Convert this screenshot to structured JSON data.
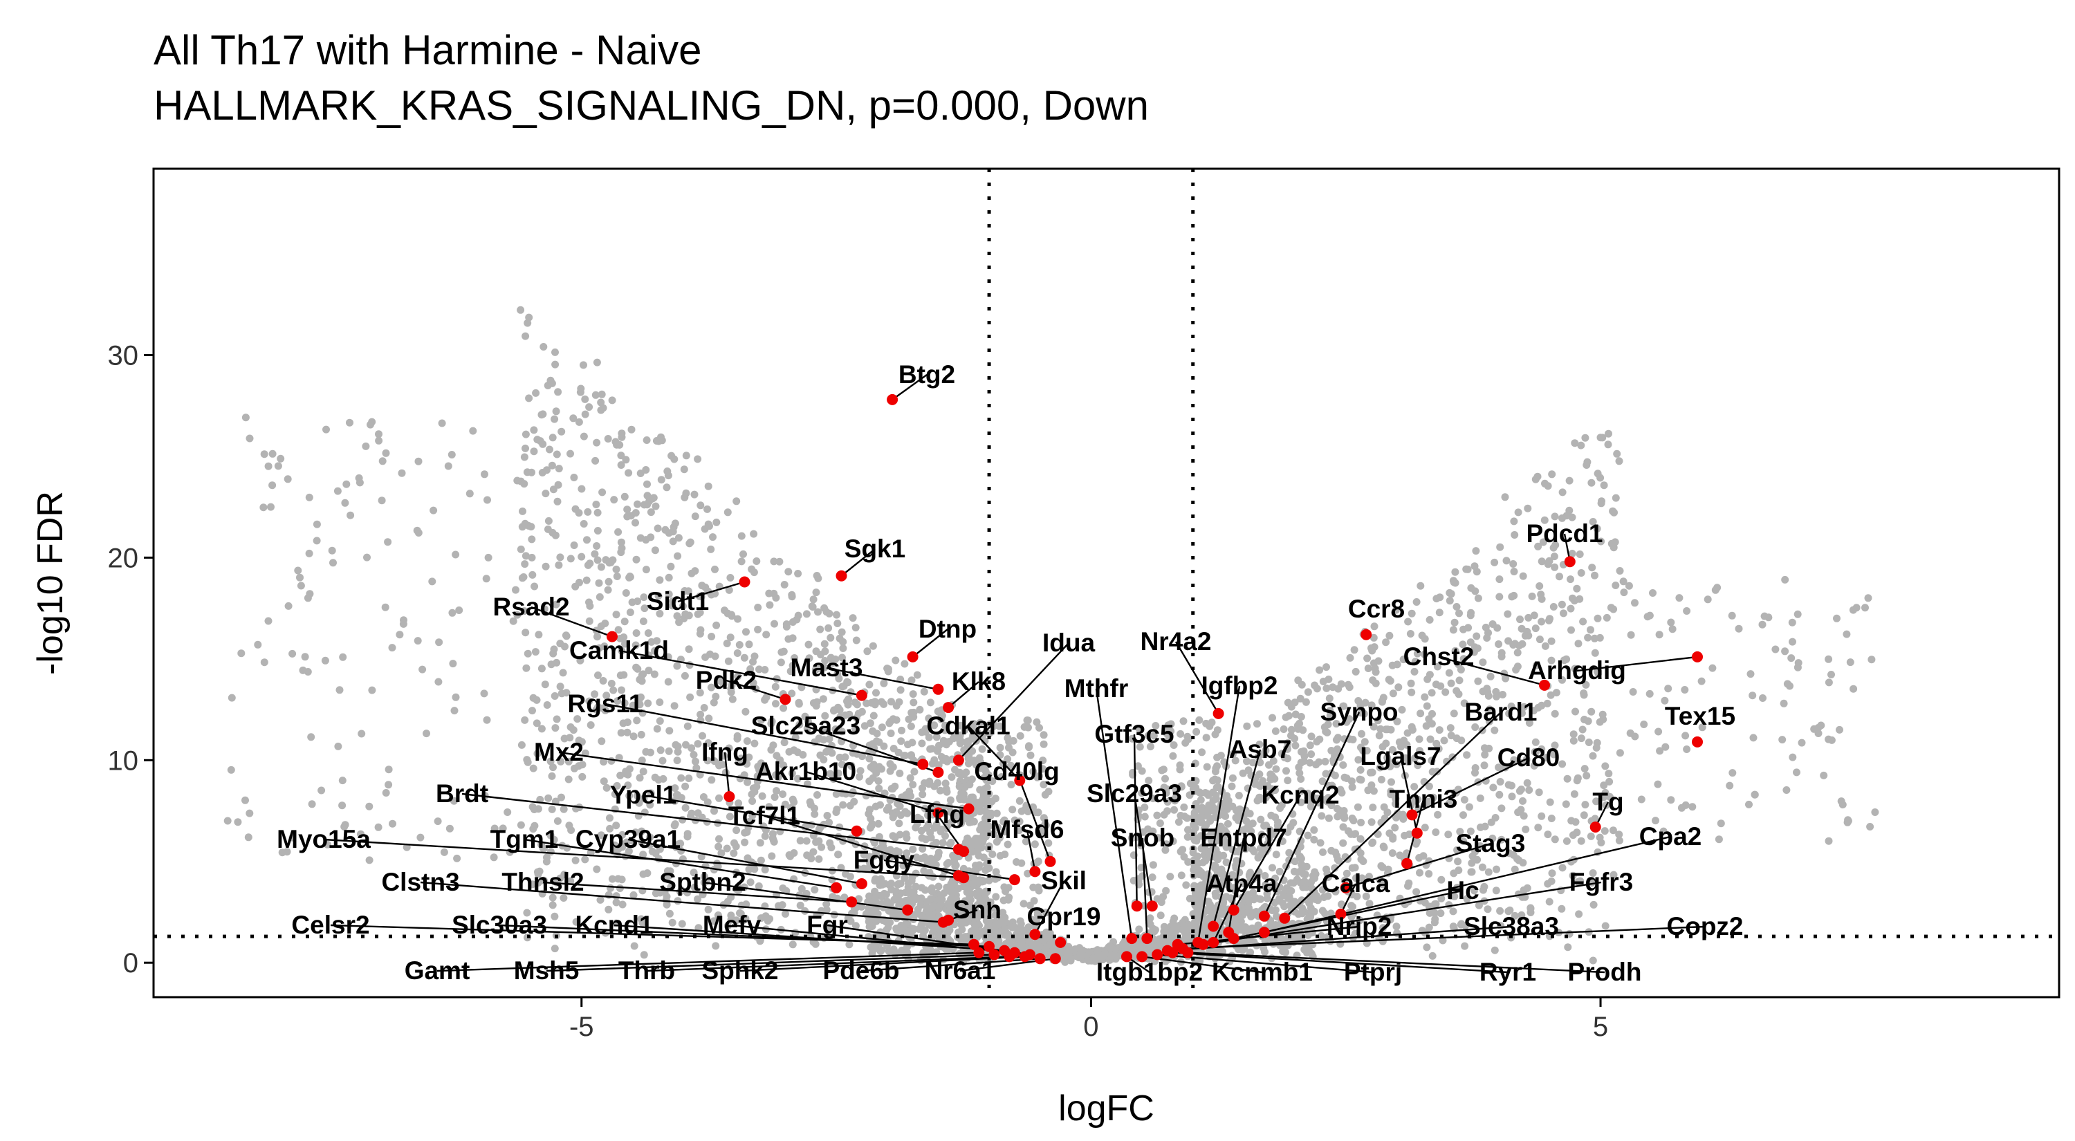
{
  "title": "All Th17 with Harmine - Naive",
  "subtitle": "HALLMARK_KRAS_SIGNALING_DN, p=0.000, Down",
  "chart_data": {
    "type": "scatter",
    "title": "All Th17 with Harmine - Naive",
    "subtitle": "HALLMARK_KRAS_SIGNALING_DN, p=0.000, Down",
    "xlabel": "logFC",
    "ylabel": "-log10 FDR",
    "xlim": [
      -9.2,
      9.5
    ],
    "ylim": [
      -1.7,
      39.2
    ],
    "xticks": [
      -5,
      0,
      5
    ],
    "yticks": [
      0,
      10,
      20,
      30
    ],
    "thresholds": {
      "x": [
        -1,
        1
      ],
      "y": 1.3
    },
    "grid": false,
    "colors": {
      "background_points": "#b3b3b3",
      "highlight_points": "#ee0000",
      "threshold_lines": "#000000"
    },
    "highlighted": [
      {
        "gene": "Btg2",
        "x": -1.95,
        "y": 27.8
      },
      {
        "gene": "Sgk1",
        "x": -2.45,
        "y": 19.1
      },
      {
        "gene": "Sidt1",
        "x": -3.4,
        "y": 18.8
      },
      {
        "gene": "Rsad2",
        "x": -4.7,
        "y": 16.1
      },
      {
        "gene": "Dtnp",
        "x": -1.75,
        "y": 15.1
      },
      {
        "gene": "Camk1d",
        "x": -2.25,
        "y": 13.2
      },
      {
        "gene": "Mast3",
        "x": -1.5,
        "y": 13.5
      },
      {
        "gene": "Pdk2",
        "x": -3.0,
        "y": 13.0
      },
      {
        "gene": "Klk8",
        "x": -1.4,
        "y": 12.6
      },
      {
        "gene": "Idua",
        "x": -1.3,
        "y": 10.0
      },
      {
        "gene": "Rgs11",
        "x": -1.65,
        "y": 9.8
      },
      {
        "gene": "Slc25a23",
        "x": -1.5,
        "y": 9.4
      },
      {
        "gene": "Cdkal1",
        "x": -0.7,
        "y": 9.0
      },
      {
        "gene": "Mx2",
        "x": -1.2,
        "y": 7.6
      },
      {
        "gene": "Ifng",
        "x": -3.55,
        "y": 8.2
      },
      {
        "gene": "Akr1b10",
        "x": -1.5,
        "y": 7.4
      },
      {
        "gene": "Cd40lg",
        "x": -0.4,
        "y": 5.0
      },
      {
        "gene": "Brdt",
        "x": -1.3,
        "y": 5.6
      },
      {
        "gene": "Ypel1",
        "x": -2.3,
        "y": 6.5
      },
      {
        "gene": "Lfng",
        "x": -1.25,
        "y": 5.5
      },
      {
        "gene": "Tcf7l1",
        "x": -1.3,
        "y": 4.3
      },
      {
        "gene": "Mfsd6",
        "x": -0.55,
        "y": 4.5
      },
      {
        "gene": "Myo15a",
        "x": -1.25,
        "y": 4.2
      },
      {
        "gene": "Tgm1",
        "x": -2.5,
        "y": 3.7
      },
      {
        "gene": "Cyp39a1",
        "x": -2.25,
        "y": 3.9
      },
      {
        "gene": "Fggy",
        "x": -0.75,
        "y": 4.1
      },
      {
        "gene": "Skil",
        "x": -0.55,
        "y": 1.4
      },
      {
        "gene": "Clstn3",
        "x": -1.45,
        "y": 2.0
      },
      {
        "gene": "Thnsl2",
        "x": -2.35,
        "y": 3.0
      },
      {
        "gene": "Sptbn2",
        "x": -1.8,
        "y": 2.6
      },
      {
        "gene": "Snn",
        "x": -1.4,
        "y": 2.1
      },
      {
        "gene": "Gpr19",
        "x": -0.3,
        "y": 1.0
      },
      {
        "gene": "Celsr2",
        "x": -1.15,
        "y": 0.9
      },
      {
        "gene": "Slc30a3",
        "x": -1.0,
        "y": 0.8
      },
      {
        "gene": "Kcnd1",
        "x": -0.85,
        "y": 0.6
      },
      {
        "gene": "Mefv",
        "x": -0.75,
        "y": 0.5
      },
      {
        "gene": "Fgr",
        "x": -0.6,
        "y": 0.4
      },
      {
        "gene": "Gamt",
        "x": -1.1,
        "y": 0.5
      },
      {
        "gene": "Msh5",
        "x": -0.95,
        "y": 0.4
      },
      {
        "gene": "Thrb",
        "x": -0.8,
        "y": 0.3
      },
      {
        "gene": "Sphk2",
        "x": -0.65,
        "y": 0.3
      },
      {
        "gene": "Pde6b",
        "x": -0.5,
        "y": 0.2
      },
      {
        "gene": "Nr6a1",
        "x": -0.35,
        "y": 0.2
      },
      {
        "gene": "Pdcd1",
        "x": 4.7,
        "y": 19.8
      },
      {
        "gene": "Ccr8",
        "x": 2.7,
        "y": 16.2
      },
      {
        "gene": "Arhgdig",
        "x": 5.95,
        "y": 15.1
      },
      {
        "gene": "Chst2",
        "x": 4.45,
        "y": 13.7
      },
      {
        "gene": "Nr4a2",
        "x": 1.25,
        "y": 12.3
      },
      {
        "gene": "Tex15",
        "x": 5.95,
        "y": 10.9
      },
      {
        "gene": "Igfbp2",
        "x": 1.05,
        "y": 1.0
      },
      {
        "gene": "Mthfr",
        "x": 0.4,
        "y": 1.2
      },
      {
        "gene": "Gtf3c5",
        "x": 0.45,
        "y": 2.8
      },
      {
        "gene": "Synpo",
        "x": 1.7,
        "y": 2.3
      },
      {
        "gene": "Bard1",
        "x": 1.9,
        "y": 2.2
      },
      {
        "gene": "Cd80",
        "x": 3.15,
        "y": 7.3
      },
      {
        "gene": "Lgals7",
        "x": 3.2,
        "y": 6.4
      },
      {
        "gene": "Asb7",
        "x": 1.2,
        "y": 1.8
      },
      {
        "gene": "Slc29a3",
        "x": 0.6,
        "y": 2.8
      },
      {
        "gene": "Tnni3",
        "x": 3.1,
        "y": 4.9
      },
      {
        "gene": "Kcnq2",
        "x": 1.4,
        "y": 2.6
      },
      {
        "gene": "Tg",
        "x": 4.95,
        "y": 6.7
      },
      {
        "gene": "Snob",
        "x": 0.55,
        "y": 1.2
      },
      {
        "gene": "Entpd7",
        "x": 1.35,
        "y": 1.5
      },
      {
        "gene": "Stag3",
        "x": 2.5,
        "y": 3.7
      },
      {
        "gene": "Cpa2",
        "x": 1.7,
        "y": 1.5
      },
      {
        "gene": "Atp4a",
        "x": 1.2,
        "y": 1.0
      },
      {
        "gene": "Calca",
        "x": 2.45,
        "y": 2.4
      },
      {
        "gene": "Hc",
        "x": 1.4,
        "y": 1.2
      },
      {
        "gene": "Fgfr3",
        "x": 1.1,
        "y": 0.9
      },
      {
        "gene": "Nrip2",
        "x": 0.85,
        "y": 0.9
      },
      {
        "gene": "Slc38a3",
        "x": 0.75,
        "y": 0.6
      },
      {
        "gene": "Copz2",
        "x": 0.9,
        "y": 0.7
      },
      {
        "gene": "Itgb1bp2",
        "x": 0.35,
        "y": 0.3
      },
      {
        "gene": "Kcnmb1",
        "x": 0.5,
        "y": 0.3
      },
      {
        "gene": "Ptprj",
        "x": 0.65,
        "y": 0.4
      },
      {
        "gene": "Ryr1",
        "x": 0.8,
        "y": 0.5
      },
      {
        "gene": "Prodh",
        "x": 0.95,
        "y": 0.5
      }
    ]
  }
}
